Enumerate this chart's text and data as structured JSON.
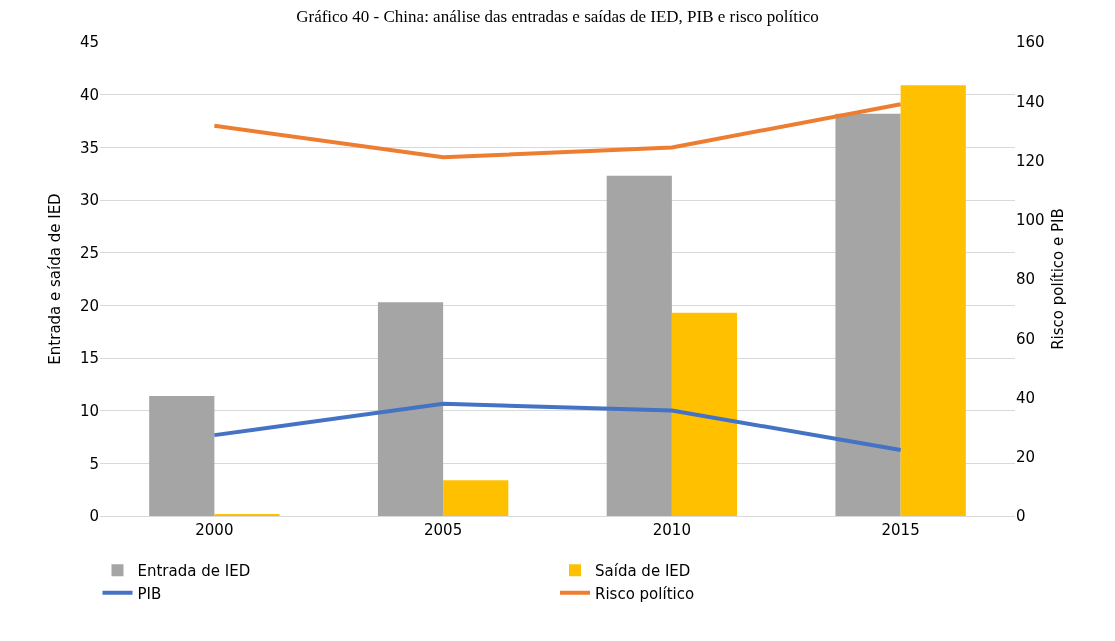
{
  "chart_data": {
    "type": "bar",
    "title": "Gráfico 40 - China: análise das entradas e saídas de IED, PIB e risco político",
    "ylabel": "Entrada e saída de IED",
    "y2label": "Risco político e PIB",
    "categories": [
      "2000",
      "2005",
      "2010",
      "2015"
    ],
    "series": [
      {
        "name": "Entrada de IED",
        "color": "#a5a5a5",
        "values": [
          11.4,
          20.3,
          32.3,
          38.2
        ]
      },
      {
        "name": "Saída de IED",
        "color": "#ffc000",
        "values": [
          0.2,
          3.4,
          19.3,
          40.9
        ]
      },
      {
        "name": "PIB",
        "type": "line",
        "axis": "y2",
        "color": "#4472c4",
        "values": [
          27.3,
          37.9,
          35.6,
          22.3
        ]
      },
      {
        "name": "Risco político",
        "type": "line",
        "axis": "y2",
        "color": "#ed7d31",
        "values": [
          131.7,
          121.1,
          124.4,
          139
        ]
      }
    ],
    "ylim": [
      0,
      45
    ],
    "yticks": [
      0,
      5,
      10,
      15,
      20,
      25,
      30,
      35,
      40,
      45
    ],
    "y2lim": [
      0,
      160
    ],
    "y2ticks": [
      0,
      20,
      40,
      60,
      80,
      100,
      120,
      140,
      160
    ],
    "grid": "y",
    "legend": "bottom",
    "marker": "none",
    "line_style": "solid"
  }
}
